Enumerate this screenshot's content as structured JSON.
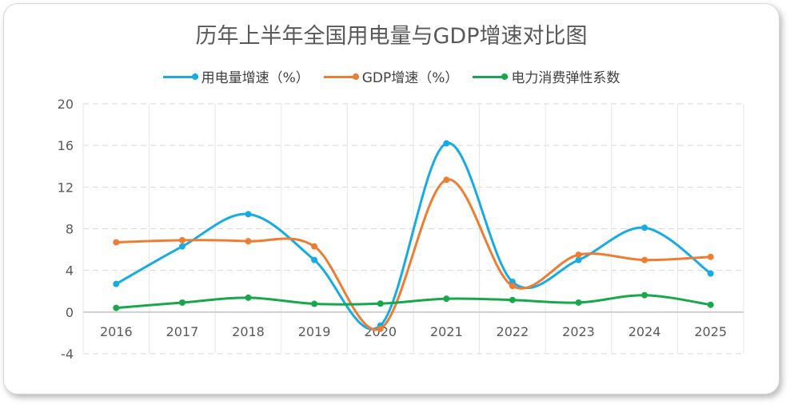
{
  "chart_data": {
    "type": "line",
    "title": "历年上半年全国用电量与GDP增速对比图",
    "categories": [
      "2016",
      "2017",
      "2018",
      "2019",
      "2020",
      "2021",
      "2022",
      "2023",
      "2024",
      "2025"
    ],
    "ylim": [
      -4,
      20
    ],
    "yticks": [
      "20",
      "16",
      "12",
      "8",
      "4",
      "0",
      "-4"
    ],
    "grid": true,
    "legend": "top",
    "series": [
      {
        "name": "用电量增速（%）",
        "color": "#17ABE3",
        "values": [
          2.7,
          6.3,
          9.4,
          5.0,
          -1.3,
          16.2,
          2.9,
          5.0,
          8.1,
          3.7
        ]
      },
      {
        "name": "GDP增速（%）",
        "color": "#ED7D31",
        "values": [
          6.7,
          6.9,
          6.8,
          6.3,
          -1.6,
          12.7,
          2.5,
          5.5,
          5.0,
          5.3
        ]
      },
      {
        "name": "电力消费弹性系数",
        "color": "#16A84A",
        "values": [
          0.4,
          0.91,
          1.38,
          0.79,
          0.81,
          1.28,
          1.16,
          0.91,
          1.62,
          0.7
        ]
      }
    ]
  }
}
